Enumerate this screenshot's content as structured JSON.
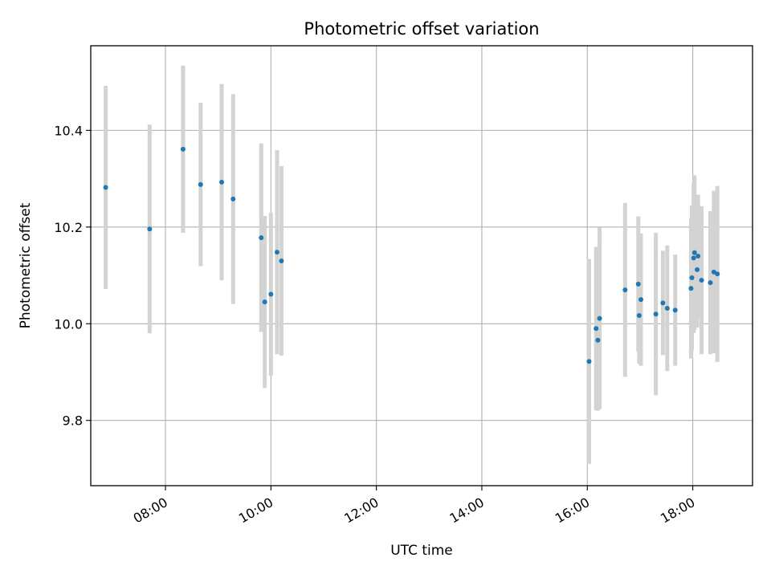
{
  "chart_data": {
    "type": "scatter",
    "title": "Photometric offset variation",
    "xlabel": "UTC time",
    "ylabel": "Photometric offset",
    "xlim": [
      "06:35",
      "19:08"
    ],
    "ylim": [
      9.665,
      10.575
    ],
    "x_ticks": [
      "08:00",
      "10:00",
      "12:00",
      "14:00",
      "16:00",
      "18:00"
    ],
    "y_ticks": [
      9.8,
      10.0,
      10.2,
      10.4
    ],
    "grid": true,
    "colors": {
      "point": "#1f77b4",
      "errorbar": "#d3d3d3",
      "grid": "#b0b0b0",
      "axes": "#000000"
    },
    "points": [
      {
        "x": "06:52",
        "y": 10.282,
        "err": 0.21
      },
      {
        "x": "07:42",
        "y": 10.196,
        "err": 0.216
      },
      {
        "x": "08:20",
        "y": 10.361,
        "err": 0.173
      },
      {
        "x": "08:40",
        "y": 10.288,
        "err": 0.169
      },
      {
        "x": "09:04",
        "y": 10.293,
        "err": 0.203
      },
      {
        "x": "09:17",
        "y": 10.258,
        "err": 0.217
      },
      {
        "x": "09:49",
        "y": 10.178,
        "err": 0.195
      },
      {
        "x": "09:53",
        "y": 10.045,
        "err": 0.178
      },
      {
        "x": "10:00",
        "y": 10.061,
        "err": 0.169
      },
      {
        "x": "10:07",
        "y": 10.148,
        "err": 0.211
      },
      {
        "x": "10:12",
        "y": 10.13,
        "err": 0.196
      },
      {
        "x": "16:02",
        "y": 9.922,
        "err": 0.212
      },
      {
        "x": "16:10",
        "y": 9.99,
        "err": 0.169
      },
      {
        "x": "16:12",
        "y": 9.966,
        "err": 0.146
      },
      {
        "x": "16:14",
        "y": 10.011,
        "err": 0.188
      },
      {
        "x": "16:43",
        "y": 10.07,
        "err": 0.18
      },
      {
        "x": "16:58",
        "y": 10.082,
        "err": 0.14
      },
      {
        "x": "16:59",
        "y": 10.017,
        "err": 0.1
      },
      {
        "x": "17:01",
        "y": 10.05,
        "err": 0.137
      },
      {
        "x": "17:18",
        "y": 10.02,
        "err": 0.168
      },
      {
        "x": "17:26",
        "y": 10.043,
        "err": 0.108
      },
      {
        "x": "17:31",
        "y": 10.032,
        "err": 0.13
      },
      {
        "x": "17:40",
        "y": 10.028,
        "err": 0.115
      },
      {
        "x": "17:58",
        "y": 10.073,
        "err": 0.145
      },
      {
        "x": "17:59",
        "y": 10.095,
        "err": 0.15
      },
      {
        "x": "18:01",
        "y": 10.136,
        "err": 0.155
      },
      {
        "x": "18:02",
        "y": 10.147,
        "err": 0.16
      },
      {
        "x": "18:05",
        "y": 10.112,
        "err": 0.12
      },
      {
        "x": "18:06",
        "y": 10.14,
        "err": 0.127
      },
      {
        "x": "18:10",
        "y": 10.09,
        "err": 0.153
      },
      {
        "x": "18:20",
        "y": 10.085,
        "err": 0.148
      },
      {
        "x": "18:24",
        "y": 10.107,
        "err": 0.168
      },
      {
        "x": "18:28",
        "y": 10.103,
        "err": 0.182
      }
    ]
  }
}
